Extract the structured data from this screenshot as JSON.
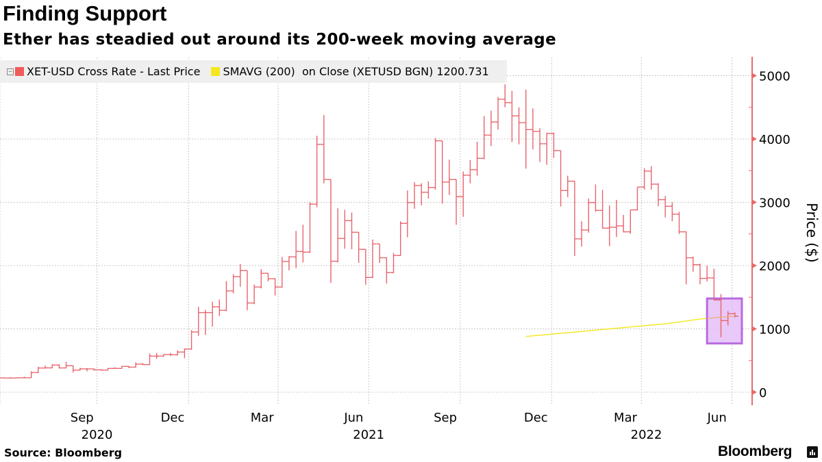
{
  "header": {
    "title": "Finding Support",
    "subtitle": "Ether has steadied out around its 200-week moving average"
  },
  "legend": {
    "items": [
      {
        "label": "XET-USD Cross Rate - Last Price",
        "color": "#f05a5a"
      },
      {
        "label": "SMAVG (200)  on Close (XETUSD BGN) 1200.731",
        "color": "#f5e71e"
      }
    ]
  },
  "footer": {
    "source": "Source: Bloomberg",
    "logo": "Bloomberg"
  },
  "highlight": {
    "color": "#e6c3f7",
    "border": "#b86ae0"
  },
  "chart_data": {
    "type": "ohlc",
    "title": "Finding Support",
    "subtitle": "Ether has steadied out around its 200-week moving average",
    "ylabel": "Price ($)",
    "ylim": [
      0,
      5300
    ],
    "yticks": [
      0,
      1000,
      2000,
      3000,
      4000,
      5000
    ],
    "y_axis_side": "right",
    "grid": true,
    "legend_position": "top-left",
    "xticks": [
      {
        "label": "Sep",
        "date": "2020-09-15"
      },
      {
        "label": "Dec",
        "date": "2020-12-15"
      },
      {
        "label": "Mar",
        "date": "2021-03-15"
      },
      {
        "label": "Jun",
        "date": "2021-06-15"
      },
      {
        "label": "Sep",
        "date": "2021-09-15"
      },
      {
        "label": "Dec",
        "date": "2021-12-15"
      },
      {
        "label": "Mar",
        "date": "2022-03-15"
      },
      {
        "label": "Jun",
        "date": "2022-06-15"
      }
    ],
    "gridline_dates": [
      "2020-09-30",
      "2020-12-31",
      "2021-03-31",
      "2021-06-30",
      "2021-09-30",
      "2021-12-31",
      "2022-03-31",
      "2022-06-30"
    ],
    "year_labels": [
      {
        "label": "2020",
        "date": "2020-09-30"
      },
      {
        "label": "2021",
        "date": "2021-06-30"
      },
      {
        "label": "2022",
        "date": "2022-04-05"
      }
    ],
    "series": [
      {
        "name": "XET-USD Cross Rate - Last Price",
        "color": "#e8636b",
        "columns": [
          "date",
          "open",
          "high",
          "low",
          "close"
        ],
        "rows": [
          [
            "2020-06-28",
            226,
            232,
            220,
            224
          ],
          [
            "2020-07-05",
            224,
            236,
            222,
            224
          ],
          [
            "2020-07-12",
            224,
            232,
            222,
            228
          ],
          [
            "2020-07-19",
            228,
            245,
            226,
            228
          ],
          [
            "2020-07-26",
            228,
            330,
            226,
            310
          ],
          [
            "2020-08-02",
            310,
            400,
            305,
            382
          ],
          [
            "2020-08-09",
            382,
            420,
            375,
            384
          ],
          [
            "2020-08-16",
            384,
            440,
            380,
            429
          ],
          [
            "2020-08-23",
            429,
            440,
            375,
            383
          ],
          [
            "2020-08-30",
            383,
            480,
            380,
            418
          ],
          [
            "2020-09-06",
            418,
            420,
            310,
            349
          ],
          [
            "2020-09-13",
            349,
            385,
            340,
            368
          ],
          [
            "2020-09-20",
            368,
            380,
            330,
            368
          ],
          [
            "2020-09-27",
            368,
            372,
            340,
            353
          ],
          [
            "2020-10-04",
            353,
            360,
            340,
            349
          ],
          [
            "2020-10-11",
            349,
            380,
            345,
            375
          ],
          [
            "2020-10-18",
            375,
            395,
            370,
            375
          ],
          [
            "2020-10-25",
            375,
            415,
            370,
            407
          ],
          [
            "2020-11-01",
            407,
            415,
            380,
            396
          ],
          [
            "2020-11-08",
            396,
            470,
            390,
            443
          ],
          [
            "2020-11-15",
            443,
            460,
            430,
            436
          ],
          [
            "2020-11-22",
            436,
            610,
            430,
            570
          ],
          [
            "2020-11-29",
            570,
            620,
            530,
            570
          ],
          [
            "2020-12-06",
            570,
            600,
            560,
            595
          ],
          [
            "2020-12-13",
            595,
            620,
            570,
            591
          ],
          [
            "2020-12-20",
            591,
            660,
            580,
            634
          ],
          [
            "2020-12-27",
            634,
            690,
            537,
            681
          ],
          [
            "2021-01-03",
            681,
            980,
            670,
            951
          ],
          [
            "2021-01-10",
            951,
            1348,
            890,
            1258
          ],
          [
            "2021-01-17",
            1258,
            1300,
            905,
            1258
          ],
          [
            "2021-01-24",
            1258,
            1430,
            1035,
            1348
          ],
          [
            "2021-01-31",
            1348,
            1463,
            1204,
            1294
          ],
          [
            "2021-02-07",
            1294,
            1755,
            1280,
            1600
          ],
          [
            "2021-02-14",
            1600,
            1862,
            1560,
            1824
          ],
          [
            "2021-02-21",
            1824,
            2025,
            1665,
            1921
          ],
          [
            "2021-02-28",
            1921,
            1921,
            1294,
            1409
          ],
          [
            "2021-03-07",
            1409,
            1700,
            1390,
            1661
          ],
          [
            "2021-03-14",
            1661,
            1943,
            1640,
            1878
          ],
          [
            "2021-03-21",
            1878,
            1880,
            1750,
            1791
          ],
          [
            "2021-03-28",
            1791,
            1800,
            1528,
            1661
          ],
          [
            "2021-04-04",
            1661,
            2137,
            1650,
            2065
          ],
          [
            "2021-04-11",
            2065,
            2150,
            1924,
            2137
          ],
          [
            "2021-04-18",
            2137,
            2548,
            1960,
            2223
          ],
          [
            "2021-04-25",
            2223,
            2645,
            2049,
            2212
          ],
          [
            "2021-05-02",
            2212,
            3000,
            2200,
            2970
          ],
          [
            "2021-05-09",
            2970,
            4050,
            2922,
            3914
          ],
          [
            "2021-05-16",
            3914,
            4378,
            3300,
            3359
          ],
          [
            "2021-05-23",
            3359,
            3359,
            1726,
            2069
          ],
          [
            "2021-05-30",
            2069,
            2905,
            2049,
            2429
          ],
          [
            "2021-06-06",
            2429,
            2880,
            2266,
            2710
          ],
          [
            "2021-06-13",
            2710,
            2837,
            2256,
            2526
          ],
          [
            "2021-06-20",
            2526,
            2526,
            2043,
            2256
          ],
          [
            "2021-06-27",
            2256,
            2256,
            1698,
            1813
          ],
          [
            "2021-07-04",
            1813,
            2411,
            1800,
            2342
          ],
          [
            "2021-07-11",
            2342,
            2342,
            2043,
            2123
          ],
          [
            "2021-07-18",
            2123,
            2130,
            1715,
            1889
          ],
          [
            "2021-07-25",
            1889,
            2200,
            1880,
            2159
          ],
          [
            "2021-08-01",
            2159,
            2700,
            2150,
            2667
          ],
          [
            "2021-08-08",
            2667,
            3186,
            2447,
            2995
          ],
          [
            "2021-08-15",
            2995,
            3319,
            2897,
            3265
          ],
          [
            "2021-08-22",
            3265,
            3300,
            2951,
            3157
          ],
          [
            "2021-08-29",
            3157,
            3330,
            3059,
            3232
          ],
          [
            "2021-09-05",
            3232,
            4014,
            3200,
            3971
          ],
          [
            "2021-09-12",
            3971,
            3971,
            2978,
            3319
          ],
          [
            "2021-09-19",
            3319,
            3672,
            3114,
            3359
          ],
          [
            "2021-09-26",
            3359,
            3359,
            2643,
            3088
          ],
          [
            "2021-10-03",
            3088,
            3485,
            2770,
            3427
          ],
          [
            "2021-10-10",
            3427,
            3665,
            3300,
            3514
          ],
          [
            "2021-10-17",
            3514,
            3957,
            3420,
            3694
          ],
          [
            "2021-10-24",
            3694,
            4362,
            3680,
            4061
          ],
          [
            "2021-10-31",
            4061,
            4446,
            3886,
            4267
          ],
          [
            "2021-11-07",
            4267,
            4663,
            4148,
            4627
          ],
          [
            "2021-11-14",
            4627,
            4861,
            4500,
            4573
          ],
          [
            "2021-11-21",
            4573,
            4760,
            3951,
            4364
          ],
          [
            "2021-11-28",
            4364,
            4500,
            3915,
            4256
          ],
          [
            "2021-12-05",
            4256,
            4778,
            3532,
            4148
          ],
          [
            "2021-12-12",
            4148,
            4483,
            3834,
            4119
          ],
          [
            "2021-12-19",
            4119,
            4170,
            3636,
            3924
          ],
          [
            "2021-12-26",
            3924,
            4100,
            3591,
            4086
          ],
          [
            "2022-01-02",
            4086,
            4100,
            3700,
            3816
          ],
          [
            "2022-01-09",
            3816,
            3816,
            2933,
            3186
          ],
          [
            "2022-01-16",
            3186,
            3420,
            3080,
            3333
          ],
          [
            "2022-01-23",
            3333,
            3333,
            2151,
            2422
          ],
          [
            "2022-01-30",
            2422,
            2700,
            2300,
            2562
          ],
          [
            "2022-02-06",
            2562,
            3060,
            2520,
            2995
          ],
          [
            "2022-02-13",
            2995,
            3281,
            2850,
            2872
          ],
          [
            "2022-02-20",
            2872,
            3196,
            2584,
            2591
          ],
          [
            "2022-02-27",
            2591,
            2950,
            2308,
            2605
          ],
          [
            "2022-03-06",
            2605,
            3038,
            2450,
            2627
          ],
          [
            "2022-03-13",
            2627,
            2800,
            2524,
            2533
          ],
          [
            "2022-03-20",
            2533,
            2879,
            2500,
            2879
          ],
          [
            "2022-03-27",
            2879,
            3240,
            2870,
            3240
          ],
          [
            "2022-04-03",
            3240,
            3535,
            3200,
            3492
          ],
          [
            "2022-04-10",
            3492,
            3571,
            3200,
            3286
          ],
          [
            "2022-04-17",
            3286,
            3300,
            2937,
            3041
          ],
          [
            "2022-04-24",
            3041,
            3100,
            2760,
            2937
          ],
          [
            "2022-05-01",
            2937,
            3000,
            2700,
            2811
          ],
          [
            "2022-05-08",
            2811,
            2850,
            2500,
            2533
          ],
          [
            "2022-05-15",
            2533,
            2540,
            1703,
            2123
          ],
          [
            "2022-05-22",
            2123,
            2140,
            1900,
            2014
          ],
          [
            "2022-05-29",
            2014,
            2030,
            1703,
            1798
          ],
          [
            "2022-06-05",
            1798,
            2000,
            1750,
            1805
          ],
          [
            "2022-06-12",
            1805,
            1950,
            1450,
            1456
          ],
          [
            "2022-06-19",
            1456,
            1550,
            868,
            1131
          ],
          [
            "2022-06-26",
            1131,
            1280,
            1055,
            1240
          ],
          [
            "2022-07-03",
            1240,
            1260,
            1180,
            1200
          ]
        ]
      },
      {
        "name": "SMAVG (200)  on Close (XETUSD BGN)",
        "color": "#f2e82a",
        "type": "line",
        "last_value": 1200.731,
        "points": [
          [
            "2021-12-05",
            880
          ],
          [
            "2021-12-12",
            890
          ],
          [
            "2021-12-19",
            900
          ],
          [
            "2021-12-26",
            910
          ],
          [
            "2022-01-02",
            920
          ],
          [
            "2022-01-09",
            930
          ],
          [
            "2022-01-16",
            940
          ],
          [
            "2022-01-23",
            950
          ],
          [
            "2022-01-30",
            960
          ],
          [
            "2022-02-06",
            970
          ],
          [
            "2022-02-13",
            980
          ],
          [
            "2022-02-20",
            990
          ],
          [
            "2022-02-27",
            1000
          ],
          [
            "2022-03-06",
            1010
          ],
          [
            "2022-03-13",
            1020
          ],
          [
            "2022-03-20",
            1030
          ],
          [
            "2022-03-27",
            1040
          ],
          [
            "2022-04-03",
            1050
          ],
          [
            "2022-04-10",
            1060
          ],
          [
            "2022-04-17",
            1070
          ],
          [
            "2022-04-24",
            1080
          ],
          [
            "2022-05-01",
            1095
          ],
          [
            "2022-05-08",
            1110
          ],
          [
            "2022-05-15",
            1125
          ],
          [
            "2022-05-22",
            1140
          ],
          [
            "2022-05-29",
            1155
          ],
          [
            "2022-06-05",
            1165
          ],
          [
            "2022-06-12",
            1175
          ],
          [
            "2022-06-19",
            1185
          ],
          [
            "2022-06-26",
            1192
          ],
          [
            "2022-07-03",
            1200
          ]
        ]
      }
    ],
    "annotations": [
      {
        "type": "highlight-box",
        "x_range": [
          "2022-06-05",
          "2022-07-10"
        ],
        "y_range": [
          770,
          1480
        ]
      }
    ]
  }
}
